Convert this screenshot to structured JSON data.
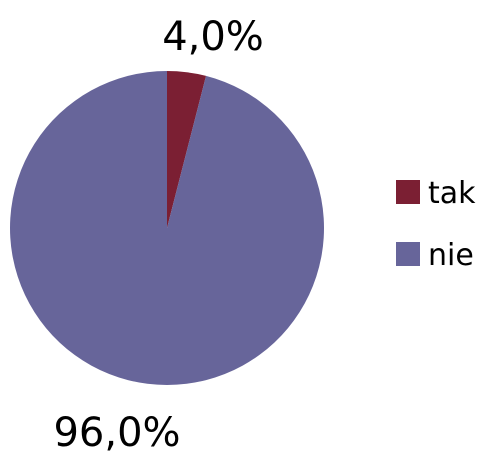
{
  "chart_data": {
    "type": "pie",
    "categories": [
      "tak",
      "nie"
    ],
    "values": [
      4.0,
      96.0
    ],
    "data_labels": [
      "4,0%",
      "96,0%"
    ],
    "colors": [
      "#7b1f33",
      "#67659a"
    ],
    "legend": {
      "position": "right",
      "entries": [
        "tak",
        "nie"
      ]
    },
    "title": "",
    "start_angle_deg": 0,
    "direction": "clockwise"
  }
}
